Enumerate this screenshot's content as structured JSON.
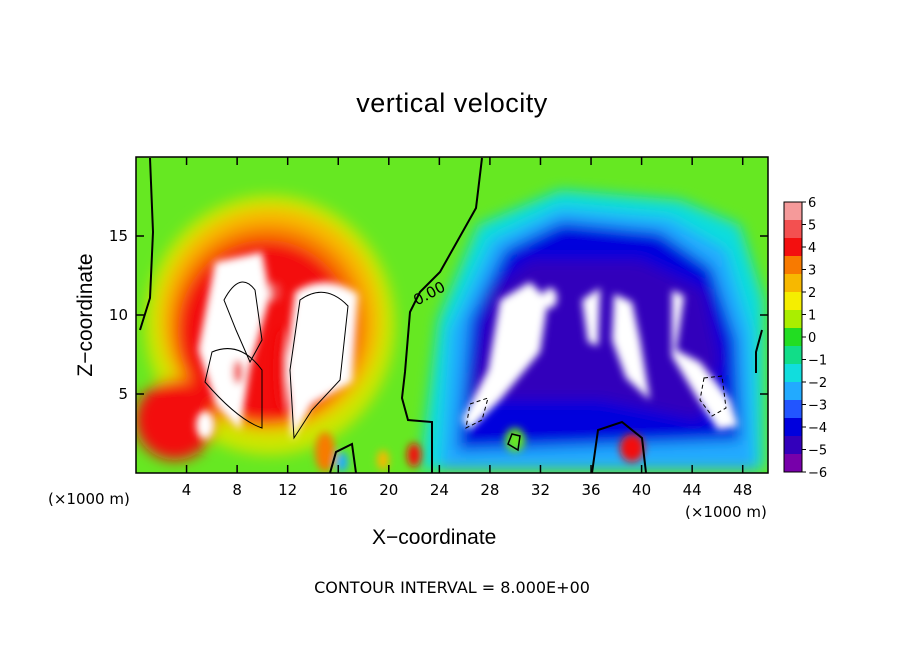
{
  "chart_data": {
    "type": "heatmap",
    "title": "vertical velocity",
    "xlabel": "X−coordinate",
    "ylabel": "Z−coordinate",
    "x_unit": "(×1000 m)",
    "footer": "CONTOUR INTERVAL = 8.000E+00",
    "contour_label": "0.00",
    "xlim": [
      0,
      50
    ],
    "ylim": [
      0,
      20
    ],
    "x_ticks": [
      4,
      8,
      12,
      16,
      20,
      24,
      28,
      32,
      36,
      40,
      44,
      48
    ],
    "y_ticks": [
      5,
      10,
      15
    ],
    "colorbar": {
      "labels": [
        "6",
        "5",
        "4",
        "3",
        "2",
        "1",
        "0",
        "−1",
        "−2",
        "−3",
        "−4",
        "−5",
        "−6"
      ],
      "colors": [
        "#f59a9a",
        "#f35050",
        "#f30f0f",
        "#f87a00",
        "#f7b800",
        "#f5ee00",
        "#aaee00",
        "#22dd22",
        "#11dd88",
        "#11dddd",
        "#22aaff",
        "#2255ff",
        "#0000dd",
        "#3300bb",
        "#7700aa"
      ]
    }
  }
}
